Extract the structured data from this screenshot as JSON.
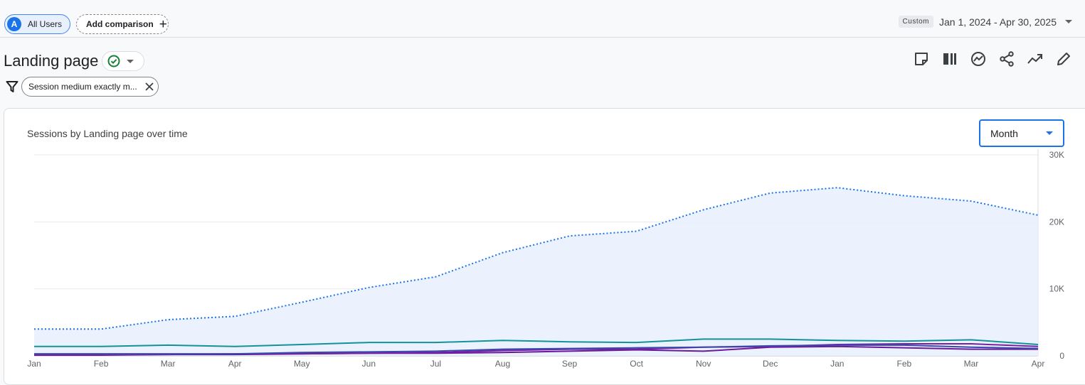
{
  "segments": {
    "all_users_avatar": "A",
    "all_users_label": "All Users",
    "add_comparison_label": "Add comparison",
    "add_icon": "+"
  },
  "date_range": {
    "tag": "Custom",
    "value": "Jan 1, 2024 - Apr 30, 2025"
  },
  "header": {
    "title": "Landing page",
    "toolbar_icons": [
      "report-note-icon",
      "compare-columns-icon",
      "insights-icon",
      "share-icon",
      "trending-icon",
      "edit-icon"
    ]
  },
  "filter": {
    "label": "Session medium exactly m..."
  },
  "card": {
    "title": "Sessions by Landing page over time",
    "granularity": "Month"
  },
  "colors": {
    "accent": "#1a73e8",
    "total_series": "#1a73e8",
    "area_fill": "#e8f0fe"
  },
  "chart_data": {
    "type": "line",
    "title": "Sessions by Landing page over time",
    "x": [
      "Jan",
      "Feb",
      "Mar",
      "Apr",
      "May",
      "Jun",
      "Jul",
      "Aug",
      "Sep",
      "Oct",
      "Nov",
      "Dec",
      "Jan",
      "Feb",
      "Mar",
      "Apr"
    ],
    "y_ticks": [
      "0",
      "10K",
      "20K",
      "30K"
    ],
    "ylim": [
      0,
      30000
    ],
    "y_axis_side": "right",
    "grid": true,
    "series": [
      {
        "values": [
          4000,
          4000,
          5400,
          5900,
          8000,
          10200,
          11800,
          15400,
          17900,
          18600,
          21800,
          24300,
          25100,
          23900,
          23100,
          21000
        ],
        "color": "#1a73e8",
        "style": "dotted",
        "area": true
      },
      {
        "values": [
          1400,
          1400,
          1600,
          1400,
          1700,
          2000,
          2000,
          2300,
          2100,
          2000,
          2500,
          2500,
          2300,
          2200,
          2400,
          1700
        ],
        "color": "#12939a",
        "style": "solid"
      },
      {
        "values": [
          300,
          300,
          300,
          300,
          500,
          600,
          700,
          1000,
          1100,
          1200,
          1300,
          1500,
          1600,
          1600,
          1300,
          1100
        ],
        "color": "#3949ab",
        "style": "solid"
      },
      {
        "values": [
          200,
          200,
          200,
          300,
          300,
          400,
          500,
          800,
          1000,
          1000,
          1300,
          1400,
          1700,
          1800,
          1800,
          1400
        ],
        "color": "#7b1fa2",
        "style": "solid"
      },
      {
        "values": [
          100,
          100,
          200,
          200,
          300,
          400,
          400,
          500,
          700,
          900,
          700,
          1300,
          1400,
          1200,
          1000,
          1000
        ],
        "color": "#6a1b9a",
        "style": "solid"
      }
    ]
  }
}
